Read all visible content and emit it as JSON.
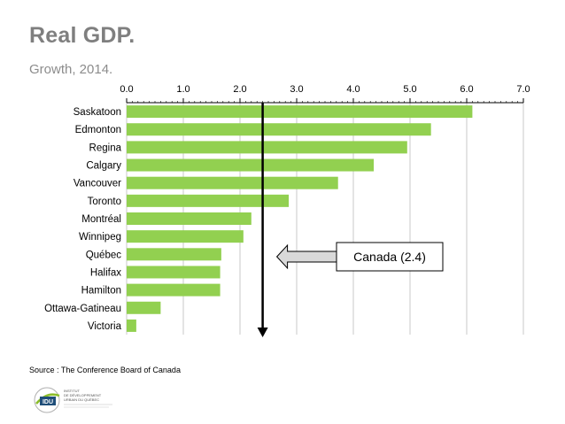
{
  "page": {
    "title": "Real GDP.",
    "subtitle": "Growth, 2014.",
    "source": "Source : The Conference Board of Canada"
  },
  "logo": {
    "acronym": "IDU",
    "lines": [
      "INSTITUT",
      "DE DÉVELOPPEMENT",
      "URBAIN DU QUÉBEC"
    ]
  },
  "colors": {
    "bar": "#92d050",
    "arrow_fill": "#d9d9d9",
    "grid": "#c8c8c8",
    "title": "#7f7f7f"
  },
  "chart_data": {
    "type": "bar",
    "orientation": "horizontal",
    "categories": [
      "Saskatoon",
      "Edmonton",
      "Regina",
      "Calgary",
      "Vancouver",
      "Toronto",
      "Montréal",
      "Winnipeg",
      "Québec",
      "Halifax",
      "Hamilton",
      "Ottawa-Gatineau",
      "Victoria"
    ],
    "values": [
      6.1,
      5.37,
      4.95,
      4.36,
      3.73,
      2.86,
      2.2,
      2.06,
      1.67,
      1.65,
      1.65,
      0.6,
      0.17
    ],
    "xlim": [
      0,
      7
    ],
    "x_ticks": [
      "0.0",
      "1.0",
      "2.0",
      "3.0",
      "4.0",
      "5.0",
      "6.0",
      "7.0"
    ],
    "x_axis_position": "top",
    "grid": true,
    "reference_line": {
      "value": 2.4,
      "label": "Canada (2.4)"
    }
  }
}
